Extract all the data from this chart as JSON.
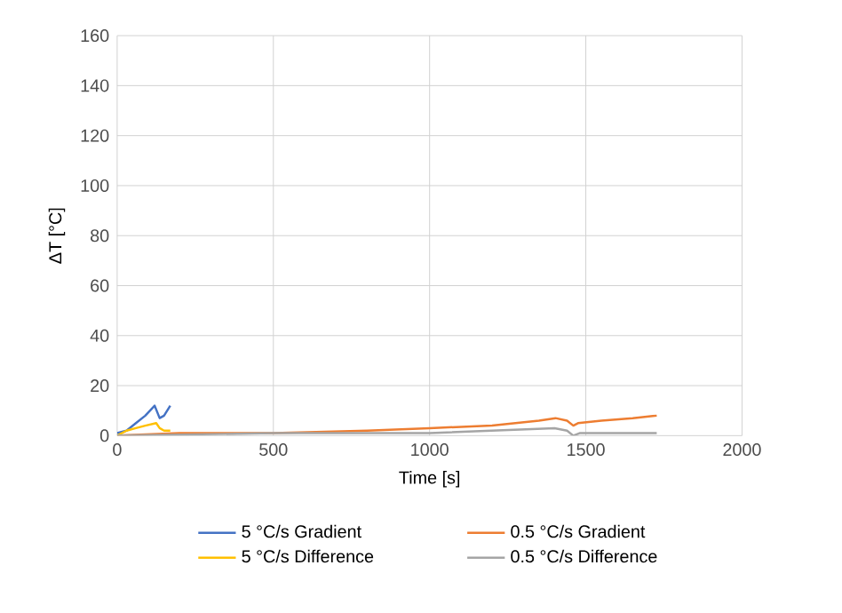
{
  "chart_data": {
    "type": "line",
    "xlabel": "Time [s]",
    "ylabel": "ΔT [°C]",
    "xlim": [
      0,
      2000
    ],
    "xticks": [
      0,
      500,
      1000,
      1500,
      2000
    ],
    "ylim": [
      0,
      160
    ],
    "yticks": [
      0,
      20,
      40,
      60,
      80,
      100,
      120,
      140,
      160
    ],
    "grid": true,
    "legend": "bottom",
    "series": [
      {
        "name": "5 °C/s Gradient",
        "color": "#4472c4",
        "x": [
          0,
          30,
          60,
          90,
          120,
          136,
          150,
          170
        ],
        "values": [
          1,
          2,
          5,
          8,
          12,
          7,
          8,
          12
        ]
      },
      {
        "name": "0.5 °C/s Gradient",
        "color": "#ed7d31",
        "x": [
          0,
          200,
          500,
          800,
          1000,
          1200,
          1350,
          1403,
          1440,
          1460,
          1475,
          1550,
          1650,
          1727
        ],
        "values": [
          0,
          1,
          1,
          2,
          3,
          4,
          6,
          7,
          6,
          4,
          5,
          6,
          7,
          8
        ]
      },
      {
        "name": "5 °C/s Difference",
        "color": "#ffc000",
        "x": [
          0,
          30,
          60,
          90,
          125,
          136,
          150,
          170
        ],
        "values": [
          0,
          2,
          3,
          4,
          5,
          3,
          2,
          2
        ]
      },
      {
        "name": "0.5 °C/s Difference",
        "color": "#a5a5a5",
        "x": [
          0,
          500,
          1000,
          1200,
          1400,
          1440,
          1460,
          1480,
          1600,
          1727
        ],
        "values": [
          0,
          1,
          1,
          2,
          3,
          2,
          0,
          1,
          1,
          1
        ]
      }
    ]
  }
}
